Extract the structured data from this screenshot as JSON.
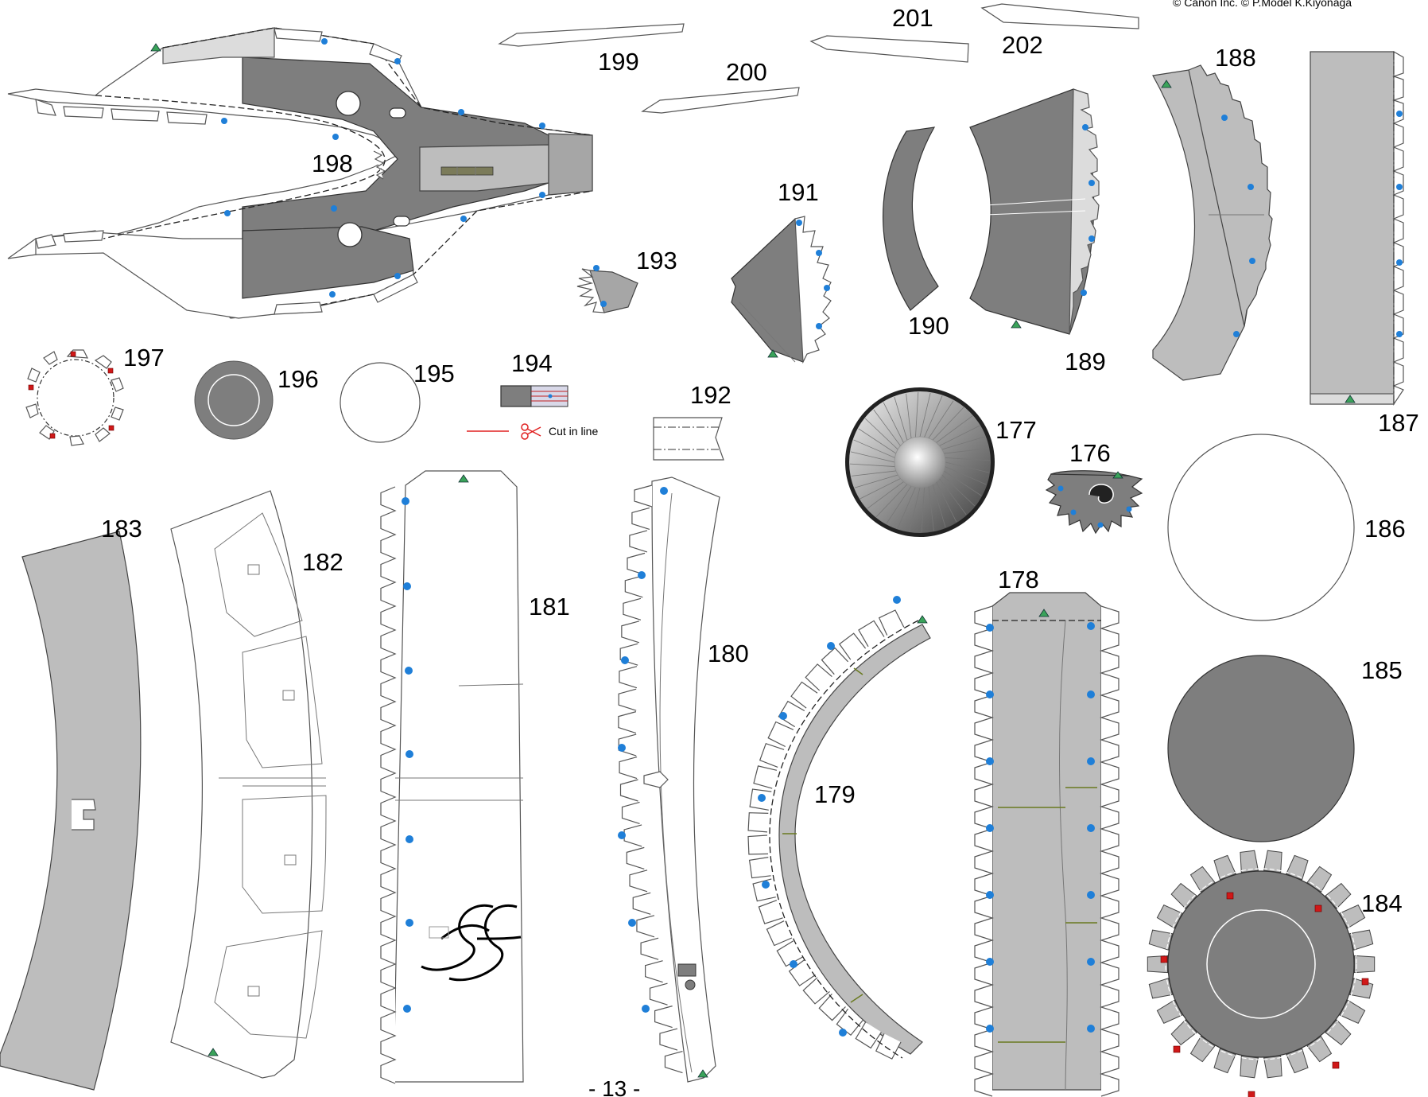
{
  "copyright": "© Canon Inc.  © P.Model K.Kiyonaga",
  "page_number": "- 13 -",
  "legend": {
    "cut_in_line": "Cut in line"
  },
  "parts": {
    "p176": "176",
    "p177": "177",
    "p178": "178",
    "p179": "179",
    "p180": "180",
    "p181": "181",
    "p182": "182",
    "p183": "183",
    "p184": "184",
    "p185": "185",
    "p186": "186",
    "p187": "187",
    "p188": "188",
    "p189": "189",
    "p190": "190",
    "p191": "191",
    "p192": "192",
    "p193": "193",
    "p194": "194",
    "p195": "195",
    "p196": "196",
    "p197": "197",
    "p198": "198",
    "p199": "199",
    "p200": "200",
    "p201": "201",
    "p202": "202"
  },
  "colors": {
    "light_gray": "#bdbdbd",
    "mid_gray": "#a6a6a6",
    "dark_gray": "#7e7e7e",
    "glue_dot_blue": "#1f7fd8",
    "marker_red": "#d01818",
    "marker_green": "#3aa35a",
    "cut_line_red": "#e02020"
  }
}
